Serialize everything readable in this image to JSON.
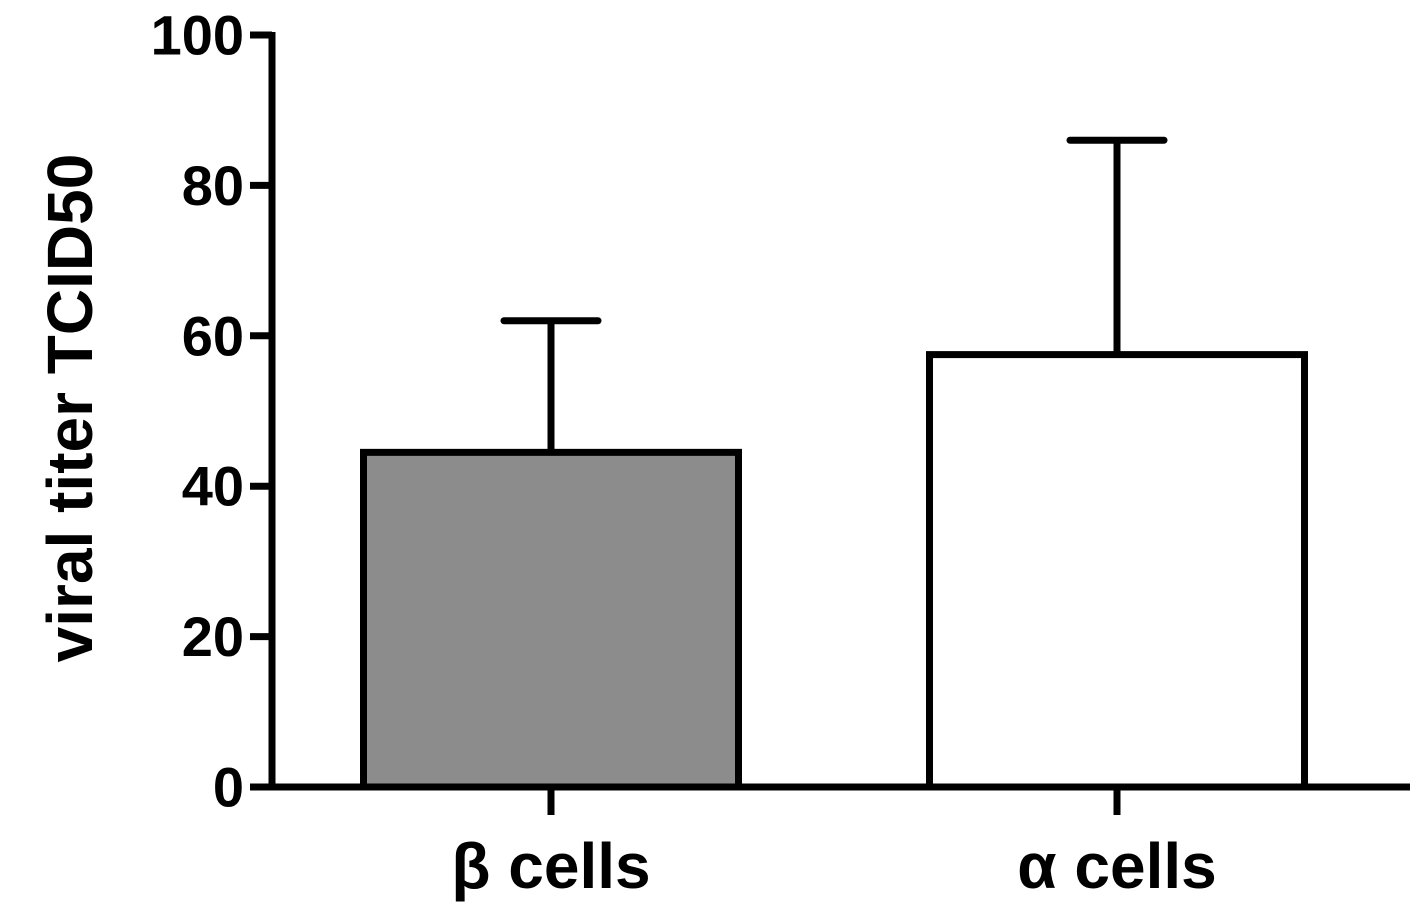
{
  "chart_data": {
    "type": "bar",
    "title": "",
    "xlabel": "",
    "ylabel": "viral titer TCID50",
    "ylim": [
      0,
      100
    ],
    "yticks": [
      0,
      20,
      40,
      60,
      80,
      100
    ],
    "grid": false,
    "categories": [
      "β cells",
      "α cells"
    ],
    "values": [
      44.5,
      57.5
    ],
    "error_upper": [
      62,
      86
    ],
    "bar_colors": [
      "#8c8c8c",
      "#ffffff"
    ],
    "edge_color": "#000000"
  }
}
